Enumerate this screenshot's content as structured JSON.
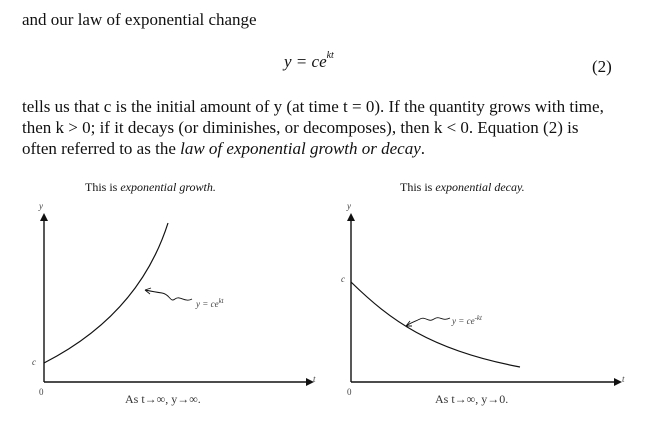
{
  "intro": "and our law of exponential change",
  "equation": {
    "lhs": "y = ce",
    "exp": "kt",
    "number": "(2)"
  },
  "paragraph": {
    "line1": "tells us that c is the initial amount of y (at time t = 0). If the quantity grows with time,",
    "line2": "then k > 0; if it decays (or diminishes, or decomposes), then k < 0. Equation (2) is",
    "line3_pre": "often referred to as the ",
    "line3_em": "law of exponential growth or decay",
    "line3_post": "."
  },
  "graphs": [
    {
      "caption_pre": "This is ",
      "caption_em": "exponential growth.",
      "y_axis": "y",
      "x_axis": "t",
      "origin": "0",
      "c_label": "c",
      "curve_label": "y = ce",
      "curve_exp": "kt",
      "bottom": "As t→∞, y→∞."
    },
    {
      "caption_pre": "This is ",
      "caption_em": "exponential decay.",
      "y_axis": "y",
      "x_axis": "t",
      "origin": "0",
      "c_label": "c",
      "curve_label": "y = ce",
      "curve_exp": "-kt",
      "bottom": "As t→∞, y→0."
    }
  ]
}
